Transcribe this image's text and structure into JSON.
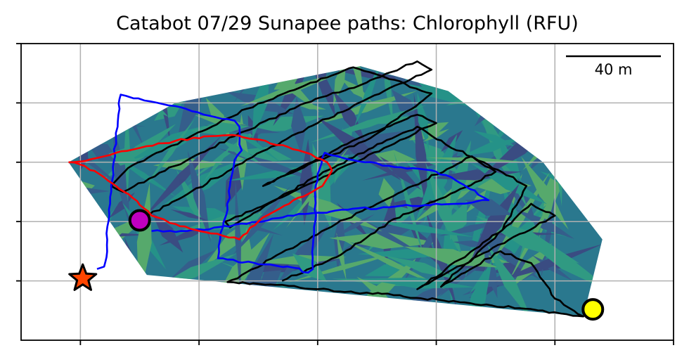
{
  "chart_data": {
    "type": "line",
    "title": "Catabot 07/29 Sunapee paths: Chlorophyll (RFU)",
    "xlabel": "",
    "ylabel": "",
    "xlim": [
      -25,
      250
    ],
    "ylim": [
      -50,
      200
    ],
    "grid": true,
    "x_ticks": [
      0,
      50,
      100,
      150,
      200,
      250
    ],
    "y_ticks": [
      0,
      50,
      100,
      150
    ],
    "tick_labels_shown": false,
    "scale_bar": {
      "label": "40 m",
      "length": 40
    },
    "colors": {
      "field_palette": [
        "#2a788e",
        "#22a884",
        "#3e4a89",
        "#482878",
        "#7ad151",
        "#35b779"
      ],
      "black_path": "#000000",
      "blue_path": "#0000ff",
      "red_path": "#ff0000",
      "start_marker": "#c000c0",
      "end_marker": "#ffff00",
      "star_marker": "#ff4500",
      "grid": "#b0b0b0"
    },
    "hull": [
      [
        -5,
        100
      ],
      [
        40,
        150
      ],
      [
        118,
        181
      ],
      [
        155,
        160
      ],
      [
        195,
        100
      ],
      [
        220,
        35
      ],
      [
        212,
        -30
      ],
      [
        28,
        5
      ]
    ],
    "series": [
      {
        "color": "#000000",
        "points": [
          [
            85,
            0
          ],
          [
            108,
            20
          ],
          [
            132,
            52
          ],
          [
            158,
            75
          ],
          [
            175,
            92
          ],
          [
            165,
            105
          ],
          [
            140,
            80
          ],
          [
            112,
            52
          ],
          [
            85,
            24
          ],
          [
            68,
            5
          ],
          [
            62,
            -1
          ],
          [
            80,
            -3
          ],
          [
            100,
            -7
          ],
          [
            132,
            -12
          ],
          [
            160,
            -18
          ],
          [
            185,
            -23
          ],
          [
            212,
            -30
          ],
          [
            200,
            -15
          ],
          [
            190,
            15
          ],
          [
            177,
            25
          ],
          [
            152,
            -5
          ],
          [
            190,
            65
          ],
          [
            200,
            55
          ],
          [
            172,
            25
          ],
          [
            142,
            -7
          ],
          [
            178,
            43
          ],
          [
            188,
            80
          ],
          [
            170,
            100
          ],
          [
            154,
            115
          ],
          [
            142,
            130
          ],
          [
            117,
            107
          ],
          [
            88,
            75
          ],
          [
            63,
            45
          ],
          [
            61,
            50
          ],
          [
            68,
            55
          ],
          [
            98,
            83
          ],
          [
            128,
            112
          ],
          [
            150,
            133
          ],
          [
            142,
            140
          ],
          [
            117,
            120
          ],
          [
            100,
            103
          ],
          [
            82,
            85
          ],
          [
            77,
            80
          ],
          [
            98,
            100
          ],
          [
            120,
            118
          ],
          [
            143,
            150
          ],
          [
            148,
            158
          ],
          [
            128,
            172
          ],
          [
            115,
            180
          ],
          [
            97,
            167
          ],
          [
            70,
            145
          ],
          [
            45,
            120
          ],
          [
            20,
            95
          ],
          [
            13,
            80
          ],
          [
            18,
            75
          ],
          [
            40,
            97
          ],
          [
            65,
            122
          ],
          [
            95,
            150
          ],
          [
            118,
            165
          ],
          [
            142,
            185
          ],
          [
            148,
            178
          ],
          [
            128,
            160
          ],
          [
            100,
            133
          ],
          [
            70,
            102
          ],
          [
            45,
            73
          ],
          [
            25,
            51
          ]
        ]
      },
      {
        "color": "#0000ff",
        "points": [
          [
            7,
            10
          ],
          [
            10,
            12
          ],
          [
            11,
            20
          ],
          [
            11,
            40
          ],
          [
            12,
            60
          ],
          [
            13,
            80
          ],
          [
            14,
            100
          ],
          [
            15,
            120
          ],
          [
            16,
            140
          ],
          [
            17,
            157
          ],
          [
            27,
            152
          ],
          [
            37,
            148
          ],
          [
            47,
            143
          ],
          [
            57,
            138
          ],
          [
            65,
            135
          ],
          [
            67,
            130
          ],
          [
            67,
            115
          ],
          [
            68,
            110
          ],
          [
            65,
            102
          ],
          [
            63,
            80
          ],
          [
            62,
            60
          ],
          [
            59,
            40
          ],
          [
            58,
            19
          ],
          [
            62,
            18
          ],
          [
            75,
            14
          ],
          [
            90,
            11
          ],
          [
            96,
            7
          ],
          [
            98,
            10
          ],
          [
            98,
            30
          ],
          [
            99,
            50
          ],
          [
            99,
            70
          ],
          [
            100,
            90
          ],
          [
            103,
            108
          ],
          [
            110,
            104
          ],
          [
            120,
            100
          ],
          [
            130,
            97
          ],
          [
            140,
            95
          ],
          [
            150,
            92
          ],
          [
            158,
            85
          ],
          [
            172,
            68
          ],
          [
            165,
            66
          ],
          [
            150,
            65
          ],
          [
            130,
            62
          ],
          [
            110,
            60
          ],
          [
            90,
            55
          ],
          [
            70,
            48
          ],
          [
            45,
            42
          ],
          [
            30,
            42
          ]
        ]
      },
      {
        "color": "#ff0000",
        "points": [
          [
            -5,
            100
          ],
          [
            0,
            98
          ],
          [
            8,
            90
          ],
          [
            15,
            80
          ],
          [
            22,
            70
          ],
          [
            30,
            55
          ],
          [
            40,
            48
          ],
          [
            55,
            40
          ],
          [
            67,
            35
          ],
          [
            75,
            50
          ],
          [
            88,
            65
          ],
          [
            102,
            80
          ],
          [
            106,
            93
          ],
          [
            104,
            100
          ],
          [
            92,
            110
          ],
          [
            78,
            118
          ],
          [
            64,
            123
          ],
          [
            55,
            122
          ],
          [
            40,
            118
          ],
          [
            25,
            112
          ],
          [
            10,
            105
          ],
          [
            2,
            101
          ],
          [
            -5,
            100
          ]
        ]
      }
    ],
    "markers": [
      {
        "kind": "start",
        "shape": "circle",
        "x": 25,
        "y": 51
      },
      {
        "kind": "end",
        "shape": "circle",
        "x": 216,
        "y": -24
      },
      {
        "kind": "home",
        "shape": "star",
        "x": 1,
        "y": 2
      }
    ]
  }
}
